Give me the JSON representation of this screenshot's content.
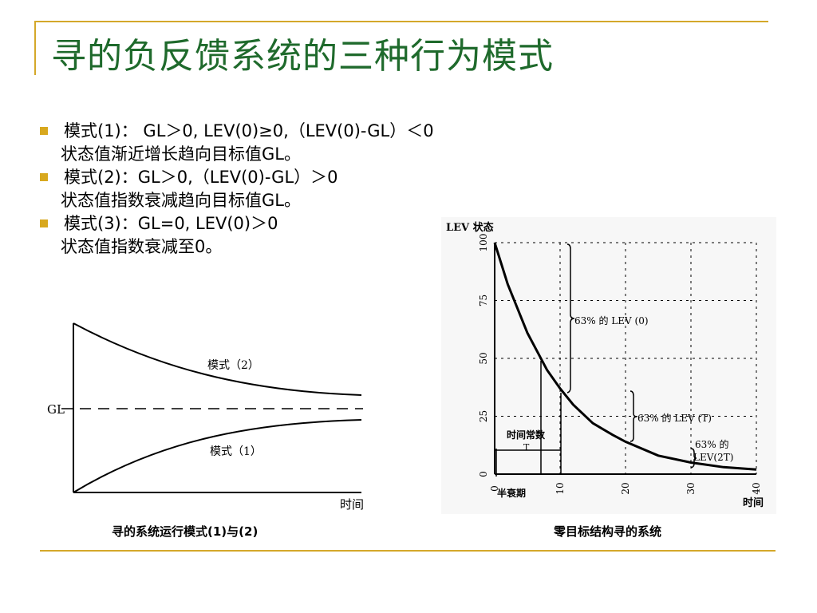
{
  "slide": {
    "title": "寻的负反馈系统的三种行为模式",
    "bullets": [
      {
        "line1": "模式(1)： GL＞0, LEV(0)≥0,（LEV(0)-GL）＜0",
        "line2": "状态值渐近增长趋向目标值GL。"
      },
      {
        "line1": "模式(2)：GL＞0,（LEV(0)-GL）＞0",
        "line2": "状态值指数衰减趋向目标值GL。"
      },
      {
        "line1": "模式(3)：GL=0, LEV(0)＞0",
        "line2": "状态值指数衰减至0。"
      }
    ],
    "captions": {
      "left": "寻的系统运行模式(1)与(2)",
      "right": "零目标结构寻的系统"
    },
    "colors": {
      "title": "#1f6a2c",
      "bullet": "#d8a81e",
      "rule": "#d4a82a"
    }
  },
  "figure_left": {
    "gl_label": "GL",
    "mode2_label": "模式（2）",
    "mode1_label": "模式（1）",
    "x_label": "时间"
  },
  "chart_data": {
    "type": "line",
    "title": "",
    "ylabel": "LEV 状态",
    "xlabel": "时间",
    "x_ticks": [
      0,
      10,
      20,
      30,
      40
    ],
    "y_ticks": [
      0,
      25,
      50,
      75,
      100
    ],
    "xlim": [
      0,
      40
    ],
    "ylim": [
      0,
      100
    ],
    "grid": true,
    "series": [
      {
        "x": [
          0,
          2,
          5,
          8,
          10,
          12,
          15,
          18,
          20,
          25,
          30,
          35,
          40
        ],
        "y": [
          100,
          82,
          61,
          45,
          37,
          30,
          22,
          17,
          14,
          8,
          5,
          3,
          2
        ]
      }
    ],
    "annotations": {
      "time_constant": "时间常数",
      "T": "T",
      "half_life": "半衰期",
      "pct_lev0": "63% 的 LEV (0)",
      "pct_levT": "63% 的 LEV (T)",
      "pct_lev2T_1": "63% 的",
      "pct_lev2T_2": "LEV(2T)"
    }
  }
}
